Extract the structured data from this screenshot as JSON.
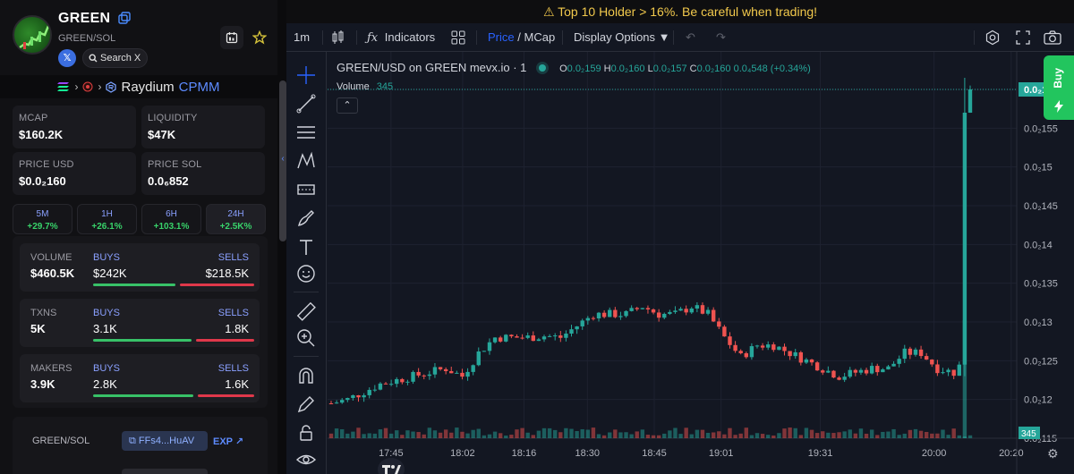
{
  "token": {
    "name": "GREEN",
    "pair": "GREEN/SOL",
    "x_label": "𝕏",
    "search_x": "Search X"
  },
  "route": {
    "dex": "Raydium",
    "pool_type": "CPMM"
  },
  "stats": [
    {
      "label": "MCAP",
      "value": "$160.2K"
    },
    {
      "label": "LIQUIDITY",
      "value": "$47K"
    },
    {
      "label": "PRICE USD",
      "value": "$0.0₂160"
    },
    {
      "label": "PRICE SOL",
      "value": "0.0₆852"
    }
  ],
  "timeframes": [
    {
      "label": "5M",
      "change": "+29.7%"
    },
    {
      "label": "1H",
      "change": "+26.1%"
    },
    {
      "label": "6H",
      "change": "+103.1%"
    },
    {
      "label": "24H",
      "change": "+2.5K%"
    }
  ],
  "trades": [
    {
      "label": "VOLUME",
      "total": "$460.5K",
      "buys_label": "BUYS",
      "buys": "$242K",
      "sells_label": "SELLS",
      "sells": "$218.5K",
      "buy_ratio": 0.525
    },
    {
      "label": "TXNS",
      "total": "5K",
      "buys_label": "BUYS",
      "buys": "3.1K",
      "sells_label": "SELLS",
      "sells": "1.8K",
      "buy_ratio": 0.63
    },
    {
      "label": "MAKERS",
      "total": "3.9K",
      "buys_label": "BUYS",
      "buys": "2.8K",
      "sells_label": "SELLS",
      "sells": "1.6K",
      "buy_ratio": 0.64
    }
  ],
  "pair_info": {
    "label": "GREEN/SOL",
    "address": "FFs4...HuAV",
    "explorer": "EXP"
  },
  "warning": "Top 10 Holder > 16%. Be careful when trading!",
  "toolbar": {
    "interval": "1m",
    "indicators": "Indicators",
    "price": "Price",
    "slash": "/",
    "mcap": "MCap",
    "display_options": "Display Options ▼"
  },
  "legend": {
    "title": "GREEN/USD on GREEN mevx.io · 1",
    "o_label": "O",
    "o": "0.0₂159",
    "h_label": "H",
    "h": "0.0₂160",
    "l_label": "L",
    "l": "0.0₂157",
    "c_label": "C",
    "c": "0.0₂160",
    "change": "0.0₄548 (+0.34%)",
    "volume_label": "Volume",
    "volume": "345",
    "collapse": "⌃"
  },
  "buy_button": "Buy",
  "colors": {
    "up": "#26a69a",
    "down": "#ef5350",
    "accent": "#2962ff",
    "buy": "#22c55e",
    "warning": "#f2c94c"
  },
  "chart_data": {
    "type": "candlestick",
    "x_ticks": [
      "17:45",
      "18:02",
      "18:16",
      "18:30",
      "18:45",
      "19:01",
      "19:31",
      "20:00",
      "20:20"
    ],
    "y_ticks": [
      "0.0₂16",
      "0.0₂155",
      "0.0₂15",
      "0.0₂145",
      "0.0₂14",
      "0.0₂135",
      "0.0₂13",
      "0.0₂125",
      "0.0₂12",
      "0.0₂115"
    ],
    "y_values": [
      0.0016,
      0.00155,
      0.0015,
      0.00145,
      0.0014,
      0.00135,
      0.0013,
      0.00125,
      0.0012,
      0.00115
    ],
    "current_price_label": "0.0₂160",
    "current_price": 0.0016,
    "volume_badge": "345",
    "close_path": [
      0.001195,
      0.0012,
      0.00121,
      0.00122,
      0.001225,
      0.00123,
      0.001235,
      0.00124,
      0.00123,
      0.00126,
      0.00128,
      0.00128,
      0.00128,
      0.001282,
      0.00128,
      0.001295,
      0.00131,
      0.00131,
      0.00131,
      0.00132,
      0.00131,
      0.00131,
      0.00132,
      0.00131,
      0.00128,
      0.001255,
      0.00127,
      0.00127,
      0.00126,
      0.00125,
      0.00124,
      0.00123,
      0.001235,
      0.00124,
      0.00124,
      0.00126,
      0.00126,
      0.00124,
      0.001235,
      0.00157,
      0.0016
    ]
  }
}
